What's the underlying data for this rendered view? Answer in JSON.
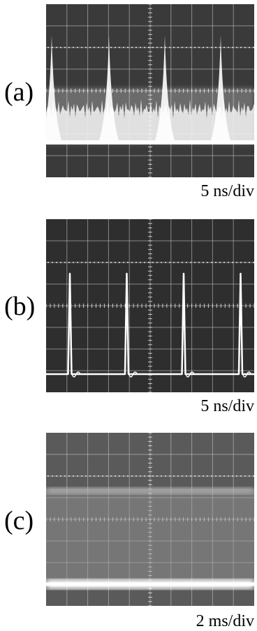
{
  "panels": [
    {
      "label": "(a)",
      "timebase": "5 ns/div"
    },
    {
      "label": "(b)",
      "timebase": "5 ns/div"
    },
    {
      "label": "(c)",
      "timebase": "2 ms/div"
    }
  ]
}
